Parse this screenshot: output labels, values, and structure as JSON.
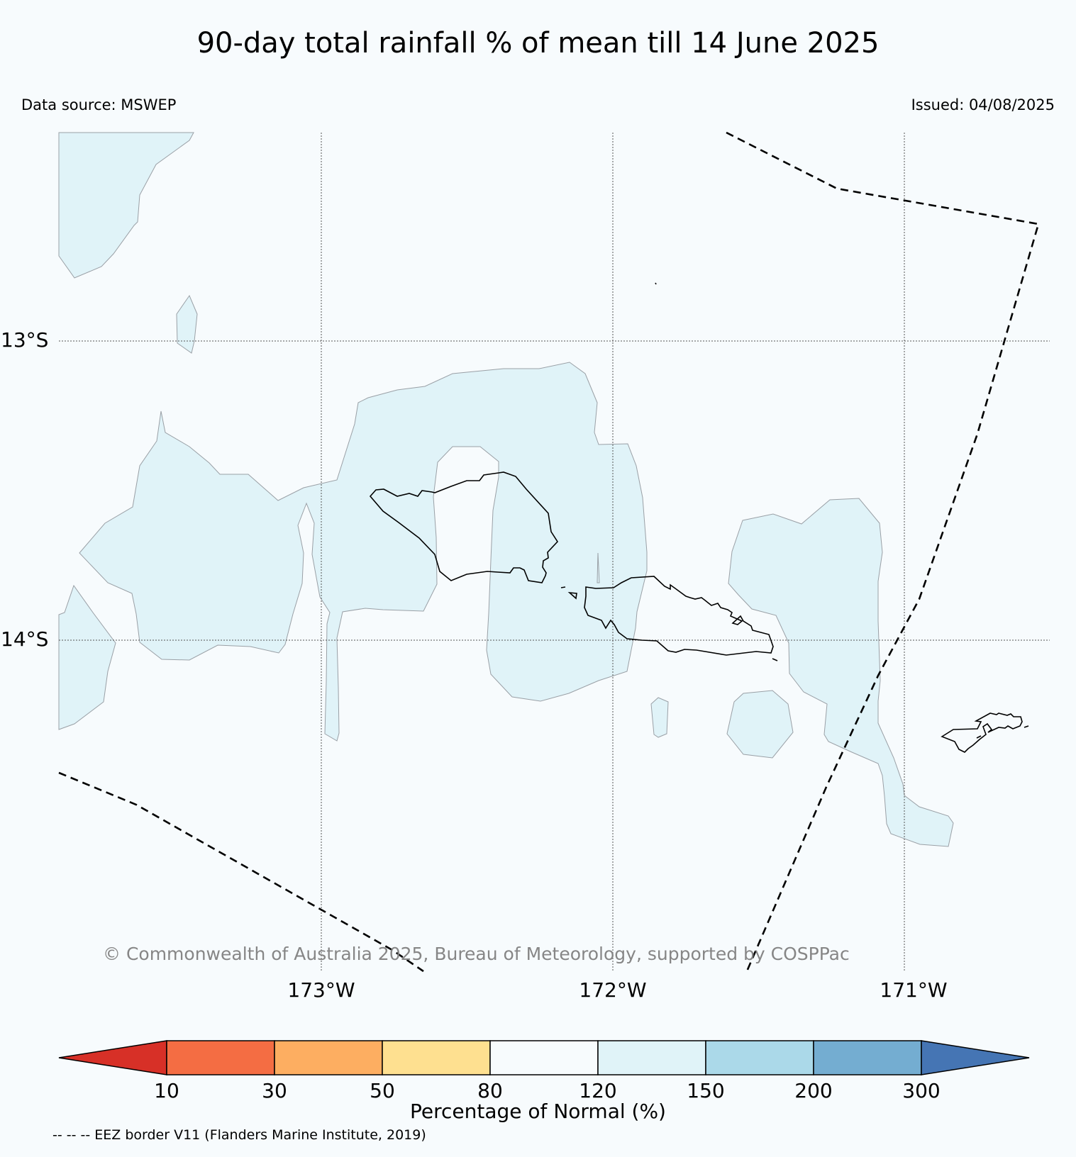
{
  "title": "90-day total rainfall % of mean till 14 June 2025",
  "data_source": "Data source: MSWEP",
  "issued": "Issued: 04/08/2025",
  "map": {
    "lat_labels": [
      "13°S",
      "14°S"
    ],
    "lon_labels": [
      "173°W",
      "172°W",
      "171°W"
    ],
    "land_outline_color": "#000000",
    "eez_line_style": "dashed"
  },
  "copyright": "© Commonwealth of Australia 2025, Bureau of Meteorology, supported by COSPPac",
  "colorbar": {
    "label": "Percentage of Normal (%)",
    "ticks": [
      "10",
      "30",
      "50",
      "80",
      "120",
      "150",
      "200",
      "300"
    ],
    "colors": [
      "#d73027",
      "#f46d43",
      "#fdae61",
      "#fee090",
      "#f7fbfd",
      "#e0f3f8",
      "#abd9e9",
      "#74add1",
      "#4575b4"
    ]
  },
  "eez_note": "-- -- -- EEZ border V11 (Flanders Marine Institute, 2019)"
}
